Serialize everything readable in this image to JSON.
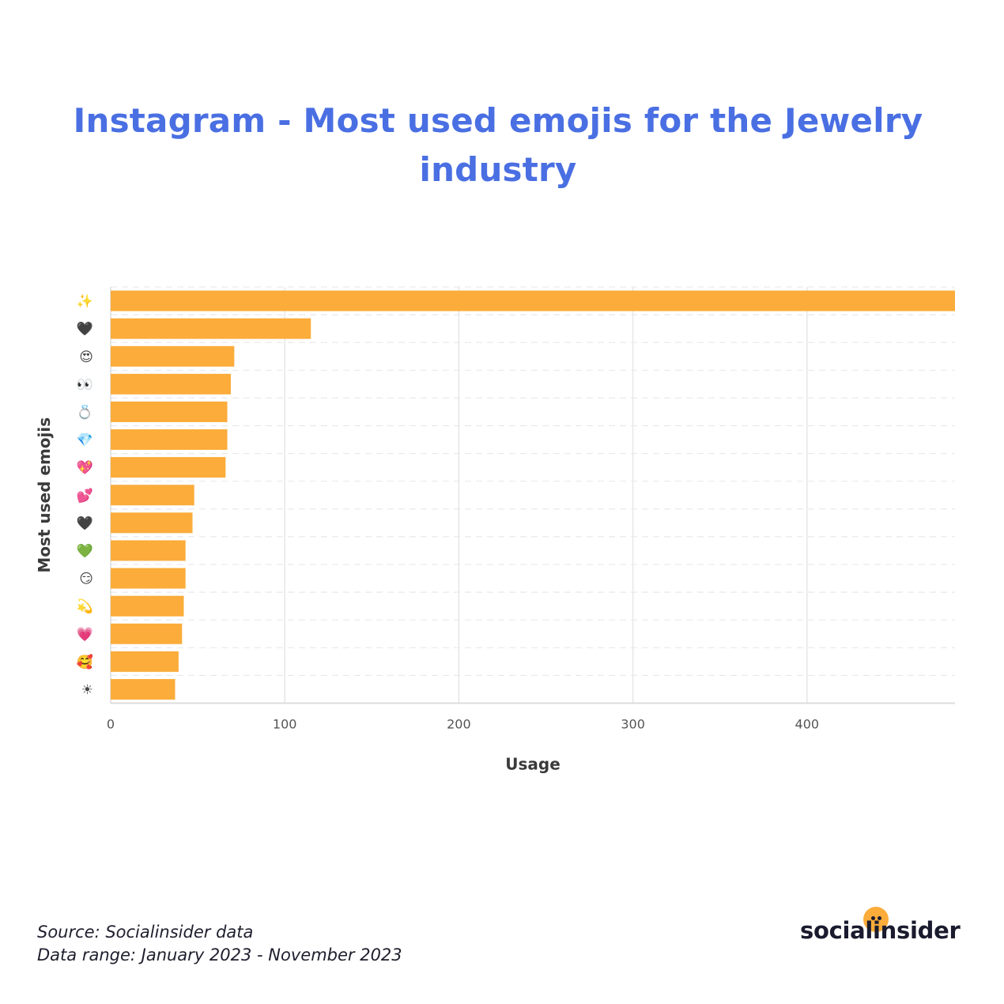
{
  "title": "Instagram - Most used emojis for the Jewelry industry",
  "source": {
    "line1": "Source: Socialinsider data",
    "line2": "Data range: January 2023 - November 2023"
  },
  "logo": {
    "text": "socialinsider"
  },
  "colors": {
    "title": "#4a6fe3",
    "bar": "#fbac3a",
    "text": "#1f1f2e"
  },
  "chart_data": {
    "type": "bar",
    "orientation": "horizontal",
    "categories": [
      "✨",
      "🖤",
      "😍",
      "👀",
      "💍",
      "💎",
      "💖",
      "💕",
      "🖤",
      "💚",
      "😏",
      "💫",
      "💗",
      "🥰",
      "☀"
    ],
    "values": [
      485,
      115,
      71,
      69,
      67,
      67,
      66,
      48,
      47,
      43,
      43,
      42,
      41,
      39,
      37
    ],
    "xlabel": "Usage",
    "ylabel": "Most used emojis",
    "xlim": [
      0,
      485
    ],
    "xticks": [
      0,
      100,
      200,
      300,
      400
    ],
    "grid": true
  }
}
